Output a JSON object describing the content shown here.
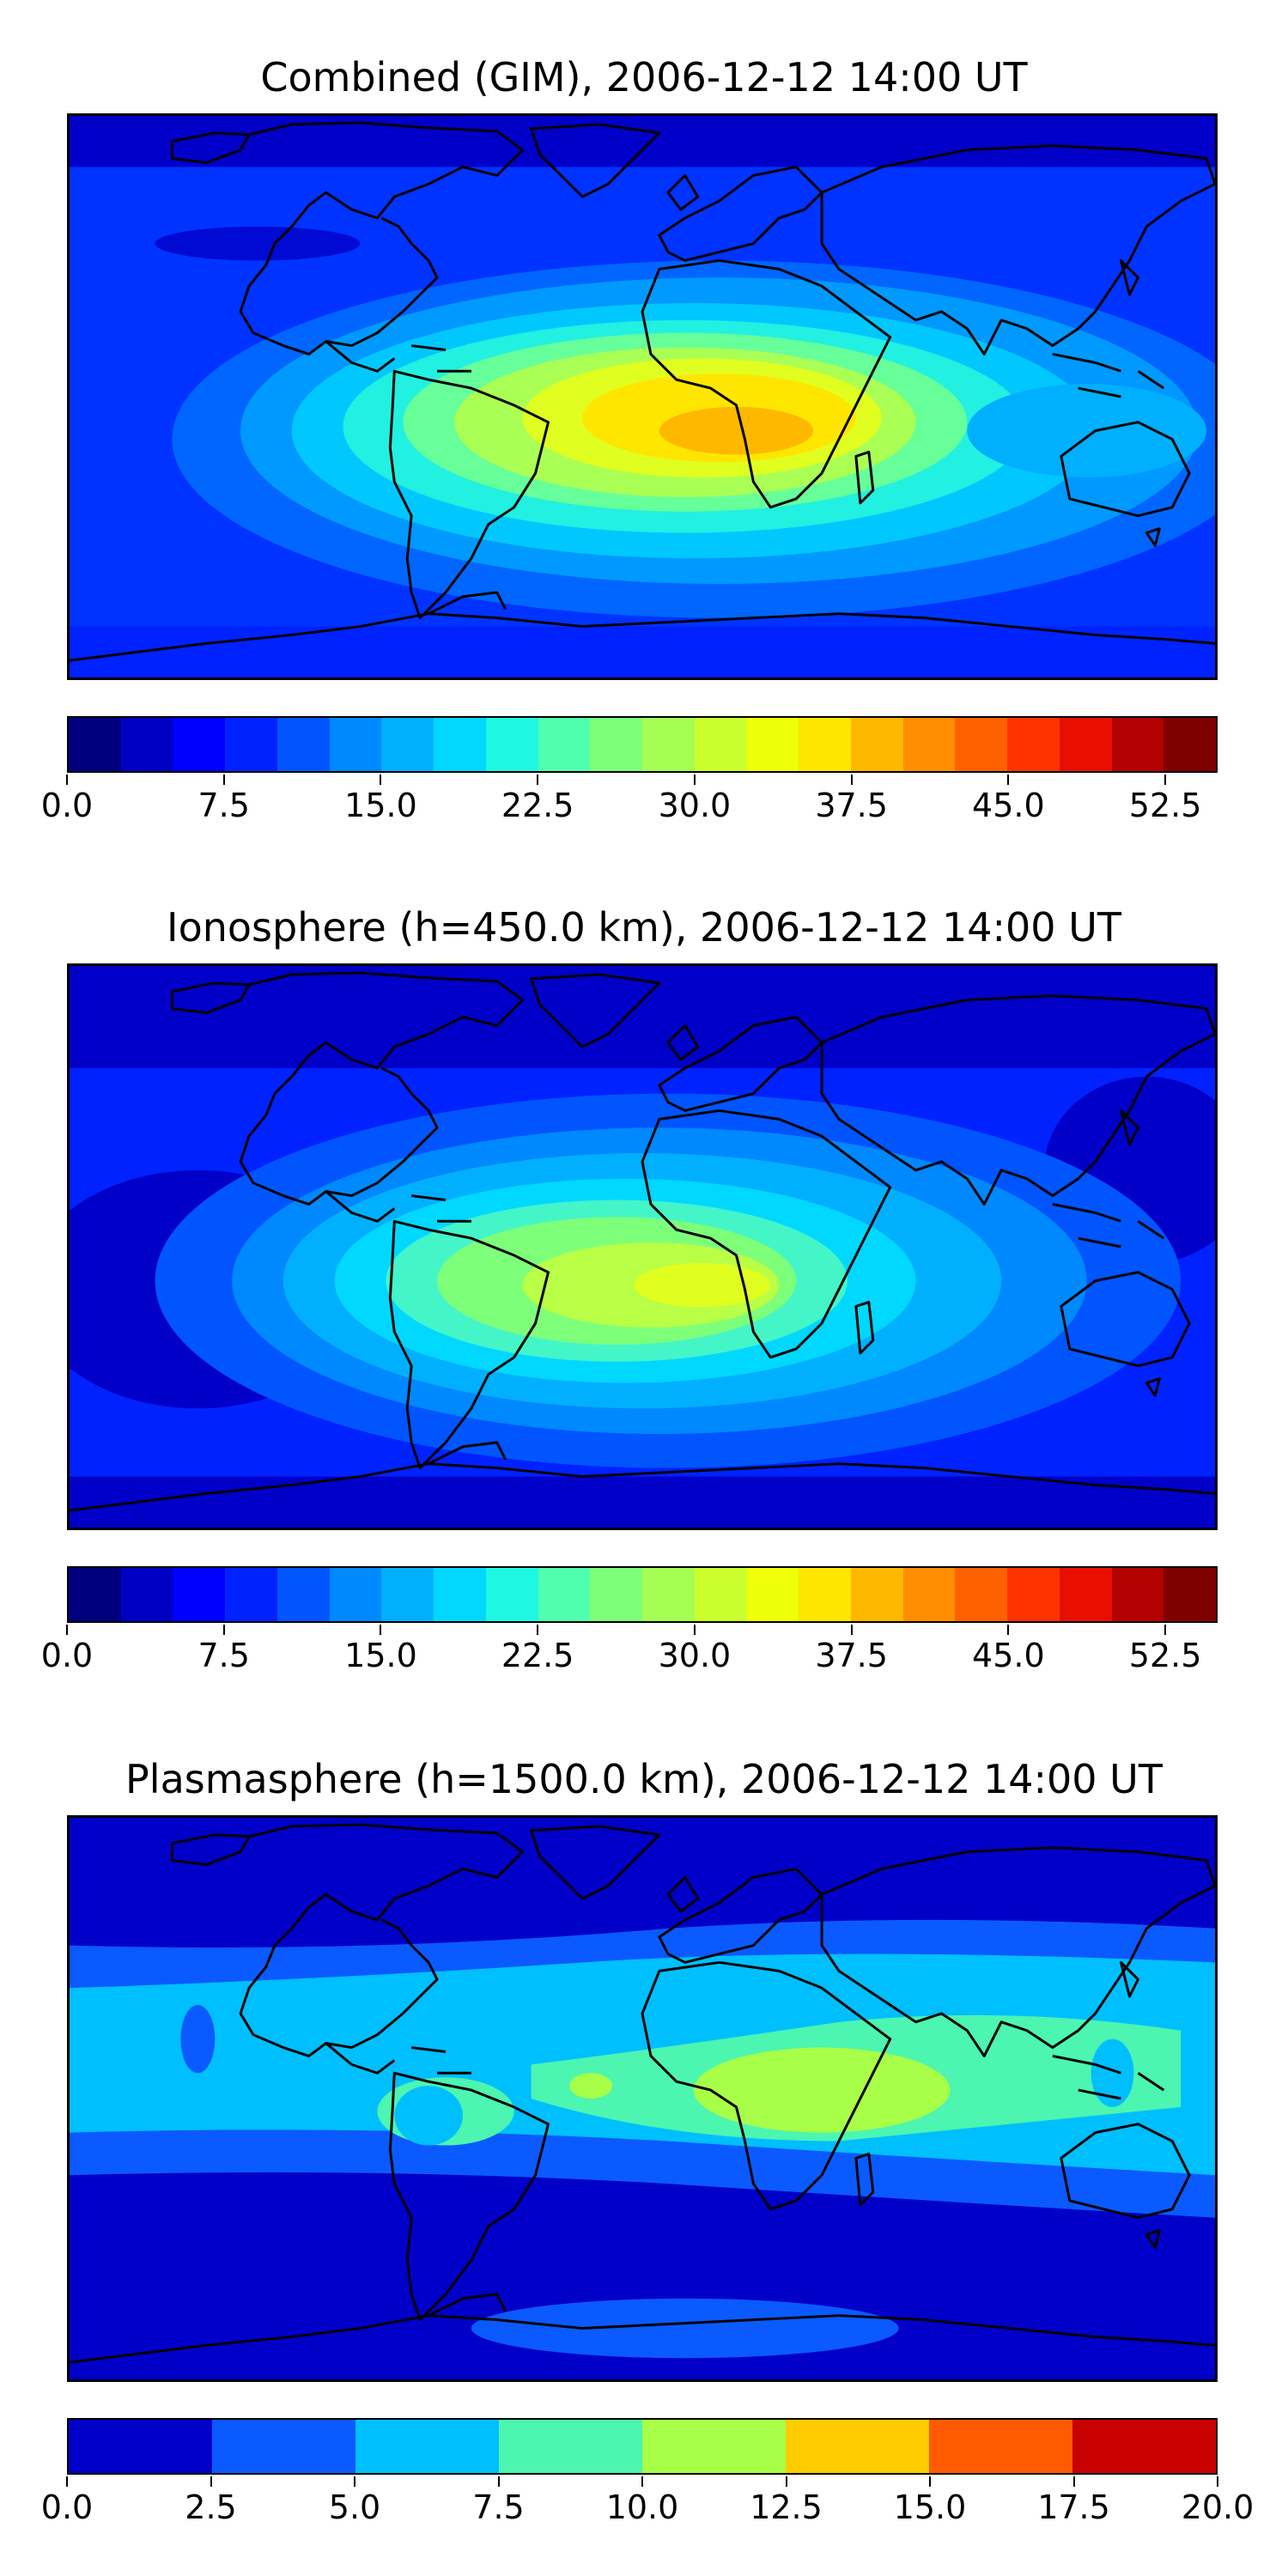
{
  "panels": [
    {
      "title": "Combined (GIM), 2006-12-12 14:00 UT",
      "colorbar": {
        "min": 0.0,
        "max": 55.0,
        "colors": [
          "#00007f",
          "#0000c4",
          "#0000ff",
          "#0022ff",
          "#0055ff",
          "#0088ff",
          "#00b0ff",
          "#00d8ff",
          "#1ef7e1",
          "#50ffad",
          "#7dff7a",
          "#a4ff52",
          "#caff2d",
          "#eeff08",
          "#ffe600",
          "#ffb800",
          "#ff8d00",
          "#ff6100",
          "#ff3300",
          "#e80f00",
          "#b30000",
          "#800000"
        ],
        "tick_labels": [
          "0.0",
          "7.5",
          "15.0",
          "22.5",
          "30.0",
          "37.5",
          "45.0",
          "52.5"
        ],
        "tick_values": [
          0.0,
          7.5,
          15.0,
          22.5,
          30.0,
          37.5,
          45.0,
          52.5
        ]
      }
    },
    {
      "title": "Ionosphere  (h=450.0 km), 2006-12-12 14:00 UT",
      "colorbar": {
        "min": 0.0,
        "max": 55.0,
        "colors": [
          "#00007f",
          "#0000c4",
          "#0000ff",
          "#0022ff",
          "#0055ff",
          "#0088ff",
          "#00b0ff",
          "#00d8ff",
          "#1ef7e1",
          "#50ffad",
          "#7dff7a",
          "#a4ff52",
          "#caff2d",
          "#eeff08",
          "#ffe600",
          "#ffb800",
          "#ff8d00",
          "#ff6100",
          "#ff3300",
          "#e80f00",
          "#b30000",
          "#800000"
        ],
        "tick_labels": [
          "0.0",
          "7.5",
          "15.0",
          "22.5",
          "30.0",
          "37.5",
          "45.0",
          "52.5"
        ],
        "tick_values": [
          0.0,
          7.5,
          15.0,
          22.5,
          30.0,
          37.5,
          45.0,
          52.5
        ]
      }
    },
    {
      "title": "Plasmasphere (h=1500.0 km), 2006-12-12 14:00 UT",
      "colorbar": {
        "min": 0.0,
        "max": 20.0,
        "colors": [
          "#0000c8",
          "#0a5aff",
          "#00bfff",
          "#4cf5b0",
          "#a8ff48",
          "#ffcc00",
          "#ff5a00",
          "#c80000"
        ],
        "tick_labels": [
          "0.0",
          "2.5",
          "5.0",
          "7.5",
          "10.0",
          "12.5",
          "15.0",
          "17.5",
          "20.0"
        ],
        "tick_values": [
          0.0,
          2.5,
          5.0,
          7.5,
          10.0,
          12.5,
          15.0,
          17.5,
          20.0
        ]
      }
    }
  ]
}
